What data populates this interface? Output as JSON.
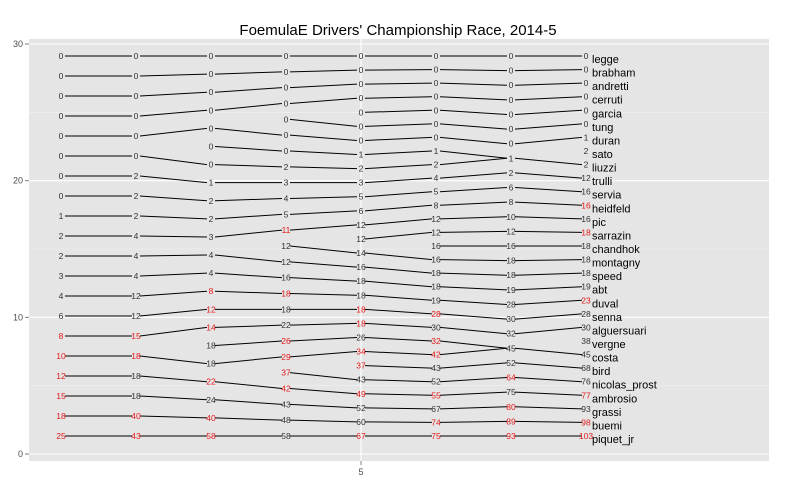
{
  "chart_data": {
    "type": "line",
    "title": "FoemulaE Drivers' Championship Race, 2014-5",
    "xlabel": "",
    "ylabel": "",
    "x_ticks": [
      5
    ],
    "y_ticks": [
      0,
      10,
      20,
      30
    ],
    "ylim": [
      0,
      30
    ],
    "grid": true,
    "panel_background": "#e5e5e5",
    "grid_color": "#ffffff",
    "line_color": "#000000",
    "label_color_default": "#333333",
    "label_color_highlight": "#e41a1c",
    "columns": [
      {
        "x": 1,
        "labels": [
          "0",
          "0",
          "0",
          "0",
          "0",
          "0",
          "0",
          "0",
          "1",
          "2",
          "2",
          "3",
          "4",
          "6",
          "8",
          "10",
          "12",
          "15",
          "18",
          "25"
        ],
        "highlight": [
          false,
          false,
          false,
          false,
          false,
          false,
          false,
          false,
          false,
          false,
          false,
          false,
          false,
          false,
          true,
          true,
          true,
          true,
          true,
          true
        ]
      },
      {
        "x": 2,
        "labels": [
          "0",
          "0",
          "0",
          "0",
          "0",
          "0",
          "2",
          "2",
          "2",
          "4",
          "4",
          "4",
          "12",
          "12",
          "15",
          "18",
          "18",
          "18",
          "40",
          "43"
        ],
        "highlight": [
          false,
          false,
          false,
          false,
          false,
          false,
          false,
          false,
          false,
          false,
          false,
          false,
          false,
          false,
          true,
          true,
          false,
          false,
          true,
          true
        ]
      },
      {
        "x": 3,
        "labels": [
          "0",
          "0",
          "0",
          "0",
          "0",
          "0",
          "0",
          "1",
          "2",
          "2",
          "3",
          "4",
          "4",
          "8",
          "12",
          "14",
          "18",
          "18",
          "22",
          "24",
          "40",
          "58"
        ],
        "highlight": [
          false,
          false,
          false,
          false,
          false,
          false,
          false,
          false,
          false,
          false,
          false,
          false,
          false,
          true,
          true,
          true,
          false,
          false,
          true,
          false,
          true,
          true
        ]
      },
      {
        "x": 4,
        "labels": [
          "0",
          "0",
          "0",
          "0",
          "0",
          "0",
          "0",
          "2",
          "3",
          "4",
          "5",
          "11",
          "12",
          "12",
          "16",
          "18",
          "18",
          "22",
          "26",
          "29",
          "37",
          "42",
          "43",
          "48",
          "58"
        ],
        "highlight": [
          false,
          false,
          false,
          false,
          false,
          false,
          false,
          false,
          false,
          false,
          false,
          true,
          false,
          false,
          false,
          true,
          false,
          false,
          true,
          true,
          true,
          true,
          false,
          false,
          false
        ]
      },
      {
        "x": 5,
        "labels": [
          "0",
          "0",
          "0",
          "0",
          "0",
          "0",
          "0",
          "1",
          "2",
          "3",
          "5",
          "6",
          "12",
          "12",
          "14",
          "16",
          "18",
          "18",
          "18",
          "18",
          "26",
          "34",
          "37",
          "43",
          "49",
          "52",
          "60",
          "67"
        ],
        "highlight": [
          false,
          false,
          false,
          false,
          false,
          false,
          false,
          false,
          false,
          false,
          false,
          false,
          false,
          false,
          false,
          false,
          false,
          false,
          true,
          true,
          false,
          true,
          true,
          false,
          true,
          false,
          false,
          true
        ]
      },
      {
        "x": 6,
        "labels": [
          "0",
          "0",
          "0",
          "0",
          "0",
          "0",
          "0",
          "1",
          "2",
          "4",
          "5",
          "8",
          "12",
          "12",
          "16",
          "16",
          "18",
          "18",
          "19",
          "28",
          "30",
          "32",
          "42",
          "43",
          "52",
          "55",
          "67",
          "74",
          "75"
        ],
        "highlight": [
          false,
          false,
          false,
          false,
          false,
          false,
          false,
          false,
          false,
          false,
          false,
          false,
          false,
          false,
          false,
          false,
          false,
          false,
          false,
          true,
          false,
          true,
          true,
          false,
          false,
          true,
          false,
          true,
          true
        ]
      },
      {
        "x": 7,
        "labels": [
          "0",
          "0",
          "0",
          "0",
          "0",
          "0",
          "0",
          "1",
          "2",
          "6",
          "8",
          "10",
          "12",
          "16",
          "18",
          "18",
          "19",
          "28",
          "30",
          "32",
          "45",
          "52",
          "64",
          "75",
          "80",
          "89",
          "93"
        ],
        "highlight": [
          false,
          false,
          false,
          false,
          false,
          false,
          false,
          false,
          false,
          false,
          false,
          false,
          false,
          false,
          false,
          false,
          false,
          false,
          false,
          false,
          false,
          false,
          true,
          false,
          true,
          true,
          true
        ]
      },
      {
        "x": 8,
        "labels": [
          "0",
          "0",
          "0",
          "0",
          "0",
          "0",
          "1",
          "2",
          "2",
          "12",
          "16",
          "16",
          "16",
          "18",
          "18",
          "18",
          "18",
          "19",
          "23",
          "28",
          "30",
          "38",
          "45",
          "68",
          "76",
          "77",
          "93",
          "98",
          "103"
        ],
        "highlight": [
          false,
          false,
          false,
          false,
          false,
          false,
          false,
          false,
          false,
          false,
          false,
          true,
          false,
          true,
          false,
          false,
          false,
          false,
          true,
          false,
          false,
          false,
          false,
          false,
          false,
          true,
          false,
          true,
          true
        ]
      }
    ],
    "drivers": [
      "legge",
      "brabham",
      "andretti",
      "cerruti",
      "garcia",
      "tung",
      "duran",
      "sato",
      "liuzzi",
      "trulli",
      "servia",
      "heidfeld",
      "pic",
      "sarrazin",
      "chandhok",
      "montagny",
      "speed",
      "abt",
      "duval",
      "senna",
      "alguersuari",
      "vergne",
      "costa",
      "bird",
      "nicolas_prost",
      "ambrosio",
      "grassi",
      "buemi",
      "piquet_jr"
    ]
  }
}
